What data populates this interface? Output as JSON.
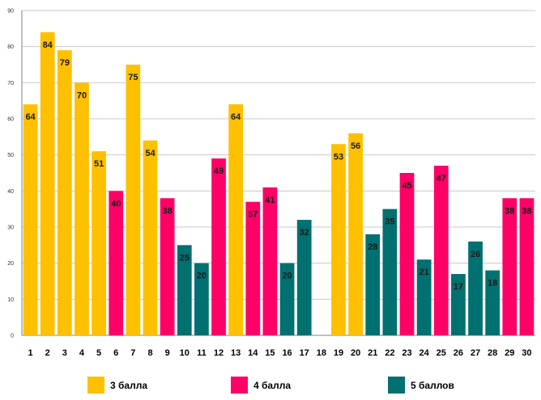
{
  "chart_data": {
    "type": "bar",
    "title": "",
    "xlabel": "",
    "ylabel": "",
    "ylim": [
      0,
      90
    ],
    "yticks": [
      0,
      10,
      20,
      30,
      40,
      50,
      60,
      70,
      80,
      90
    ],
    "grid": true,
    "categories": [
      "1",
      "2",
      "3",
      "4",
      "5",
      "6",
      "7",
      "8",
      "9",
      "10",
      "11",
      "12",
      "13",
      "14",
      "15",
      "16",
      "17",
      "18",
      "19",
      "20",
      "21",
      "22",
      "23",
      "24",
      "25",
      "26",
      "27",
      "28",
      "29",
      "30"
    ],
    "values": [
      64,
      84,
      79,
      70,
      51,
      40,
      75,
      54,
      38,
      25,
      20,
      49,
      64,
      37,
      41,
      20,
      32,
      null,
      53,
      56,
      28,
      35,
      45,
      21,
      47,
      17,
      26,
      18,
      38,
      38
    ],
    "groups": [
      "3b",
      "3b",
      "3b",
      "3b",
      "3b",
      "4b",
      "3b",
      "3b",
      "4b",
      "5b",
      "5b",
      "4b",
      "3b",
      "4b",
      "4b",
      "5b",
      "5b",
      null,
      "3b",
      "3b",
      "5b",
      "5b",
      "4b",
      "5b",
      "4b",
      "5b",
      "5b",
      "5b",
      "4b",
      "4b"
    ],
    "series": [
      {
        "key": "3b",
        "name": "3 балла",
        "color": "#FFC000"
      },
      {
        "key": "4b",
        "name": "4 балла",
        "color": "#FF0066"
      },
      {
        "key": "5b",
        "name": "5 баллов",
        "color": "#007070"
      }
    ],
    "legend_position": "bottom"
  }
}
